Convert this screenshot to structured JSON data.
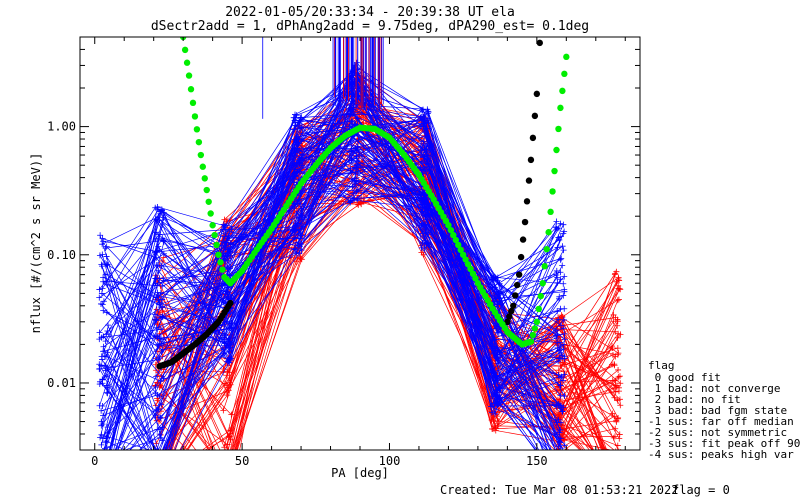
{
  "title_line1": "2022-01-05/20:33:34 - 20:39:38 UT ela",
  "title_line2": "dSectr2add = 1, dPhAng2add = 9.75deg, dPA290_est=   0.1deg",
  "footer_created": "Created: Tue Mar 08 01:53:21 2022",
  "footer_flag": "flag = 0",
  "legend": {
    "title": "flag",
    "items": [
      " 0 good fit",
      " 1 bad: not converge",
      " 2 bad: no fit",
      " 3 bad: bad fgm state",
      "-1 sus: far off median",
      "-2 sus: not symmetric",
      "-3 sus: fit peak off 90",
      "-4 sus: peaks high var"
    ]
  },
  "colors": {
    "blue_series": "#0000ff",
    "red_series": "#ff0000",
    "green_fit": "#00ee00",
    "black_fit": "#000000"
  },
  "chart_data": {
    "type": "line",
    "xlabel": "PA [deg]",
    "ylabel": "nflux [#/(cm^2 s sr MeV)]",
    "xlim": [
      -5,
      185
    ],
    "ylim": [
      0.003,
      5
    ],
    "yscale": "log",
    "xticks": [
      0,
      50,
      100,
      150
    ],
    "xtick_labels": [
      "0",
      "50",
      "100",
      "150"
    ],
    "yticks": [
      1.0,
      0.1,
      0.01
    ],
    "ytick_labels": [
      "1.00",
      "0.10",
      "0.01"
    ],
    "blue_pa_bins": [
      3,
      22,
      45,
      69,
      88,
      112,
      136,
      158
    ],
    "blue_peak_pa": 90,
    "blue_floor": [
      0.012,
      0.02,
      0.05,
      0.35,
      0.9,
      0.4,
      0.02,
      0.015
    ],
    "red_pa_bins": [
      22,
      45,
      69,
      90,
      112,
      136,
      158,
      177
    ],
    "red_floor": [
      0.008,
      0.015,
      0.3,
      0.85,
      0.35,
      0.015,
      0.01,
      0.006
    ],
    "green_fit": [
      [
        30,
        5
      ],
      [
        32,
        2.5
      ],
      [
        34,
        1.2
      ],
      [
        36,
        0.6
      ],
      [
        38,
        0.32
      ],
      [
        40,
        0.17
      ],
      [
        42,
        0.1
      ],
      [
        44,
        0.067
      ],
      [
        46,
        0.06
      ],
      [
        50,
        0.075
      ],
      [
        55,
        0.11
      ],
      [
        60,
        0.16
      ],
      [
        65,
        0.24
      ],
      [
        70,
        0.36
      ],
      [
        75,
        0.5
      ],
      [
        80,
        0.68
      ],
      [
        85,
        0.85
      ],
      [
        90,
        0.98
      ],
      [
        95,
        0.96
      ],
      [
        100,
        0.82
      ],
      [
        105,
        0.6
      ],
      [
        110,
        0.42
      ],
      [
        115,
        0.27
      ],
      [
        120,
        0.17
      ],
      [
        125,
        0.1
      ],
      [
        130,
        0.06
      ],
      [
        135,
        0.038
      ],
      [
        140,
        0.025
      ],
      [
        145,
        0.02
      ],
      [
        148,
        0.021
      ],
      [
        150,
        0.03
      ],
      [
        152,
        0.06
      ],
      [
        154,
        0.15
      ],
      [
        156,
        0.45
      ],
      [
        158,
        1.4
      ],
      [
        160,
        3.5
      ]
    ],
    "black_fit": [
      [
        22,
        0.0135
      ],
      [
        26,
        0.0145
      ],
      [
        30,
        0.017
      ],
      [
        34,
        0.02
      ],
      [
        38,
        0.024
      ],
      [
        42,
        0.03
      ],
      [
        46,
        0.042
      ],
      [
        140,
        0.03
      ],
      [
        142,
        0.04
      ],
      [
        144,
        0.07
      ],
      [
        146,
        0.18
      ],
      [
        148,
        0.55
      ],
      [
        150,
        1.8
      ],
      [
        151,
        4.5
      ]
    ]
  }
}
